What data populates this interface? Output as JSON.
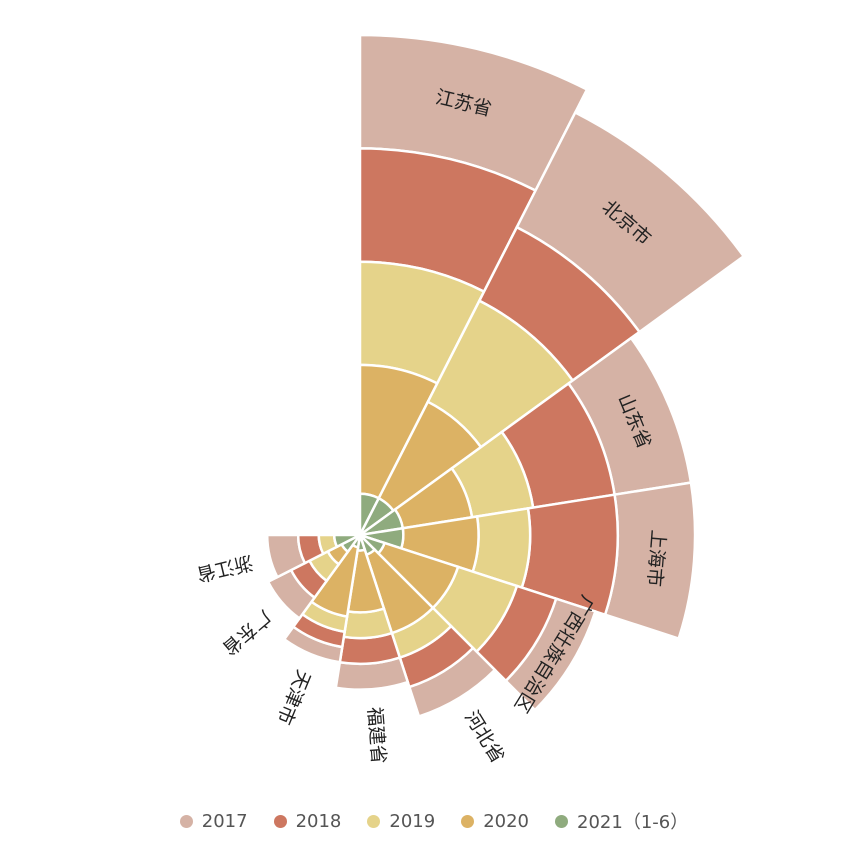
{
  "chart_data": {
    "type": "rose",
    "title": "",
    "start_angle_deg": 0,
    "sweep_deg": 270,
    "series": [
      {
        "name": "2017",
        "color": "#d5b2a5"
      },
      {
        "name": "2018",
        "color": "#cd7760"
      },
      {
        "name": "2019",
        "color": "#e5d38a"
      },
      {
        "name": "2020",
        "color": "#dcb264"
      },
      {
        "name": "2021（1-6）",
        "color": "#8fab7e"
      }
    ],
    "categories": [
      {
        "label": "江苏省",
        "cumulative": [
          485,
          375,
          265,
          165,
          40
        ]
      },
      {
        "label": "北京市",
        "cumulative": [
          460,
          335,
          255,
          145,
          40
        ]
      },
      {
        "label": "山东省",
        "cumulative": [
          325,
          250,
          170,
          110,
          42
        ]
      },
      {
        "label": "上海市",
        "cumulative": [
          325,
          250,
          165,
          115,
          42
        ]
      },
      {
        "label": "广西壮族自治区",
        "cumulative": [
          240,
          200,
          160,
          100,
          25
        ]
      },
      {
        "label": "河北省",
        "cumulative": [
          185,
          155,
          125,
          100,
          20
        ]
      },
      {
        "label": "福建省",
        "cumulative": [
          150,
          125,
          100,
          75,
          15
        ]
      },
      {
        "label": "天津市",
        "cumulative": [
          125,
          110,
          95,
          80,
          12
        ]
      },
      {
        "label": "广东省",
        "cumulative": [
          100,
          75,
          55,
          35,
          20
        ]
      },
      {
        "label": "浙江省",
        "cumulative": [
          90,
          60,
          40,
          25,
          25
        ]
      }
    ]
  },
  "legend": {
    "items": [
      {
        "label": "2017",
        "color": "#d5b2a5"
      },
      {
        "label": "2018",
        "color": "#cd7760"
      },
      {
        "label": "2019",
        "color": "#e5d38a"
      },
      {
        "label": "2020",
        "color": "#dcb264"
      },
      {
        "label": "2021（1-6）",
        "color": "#8fab7e"
      }
    ]
  }
}
